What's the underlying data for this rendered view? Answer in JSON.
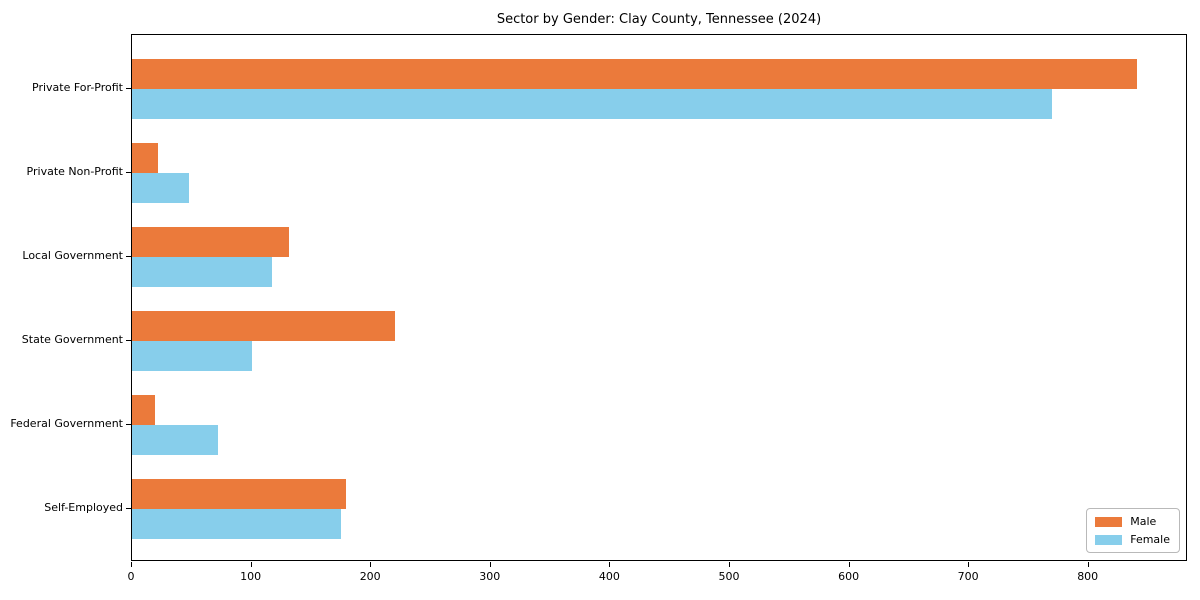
{
  "chart_data": {
    "type": "bar",
    "orientation": "horizontal",
    "title": "Sector by Gender: Clay County, Tennessee (2024)",
    "categories": [
      "Private For-Profit",
      "Private Non-Profit",
      "Local Government",
      "State Government",
      "Federal Government",
      "Self-Employed"
    ],
    "series": [
      {
        "name": "Male",
        "color": "#EB7A3B",
        "values": [
          840,
          22,
          131,
          220,
          19,
          179
        ]
      },
      {
        "name": "Female",
        "color": "#87CEEB",
        "values": [
          769,
          48,
          117,
          100,
          72,
          175
        ]
      }
    ],
    "xlabel": "",
    "ylabel": "",
    "xlim": [
      0,
      883
    ],
    "x_ticks": [
      0,
      100,
      200,
      300,
      400,
      500,
      600,
      700,
      800
    ],
    "grid": false,
    "legend_position": "lower right"
  }
}
